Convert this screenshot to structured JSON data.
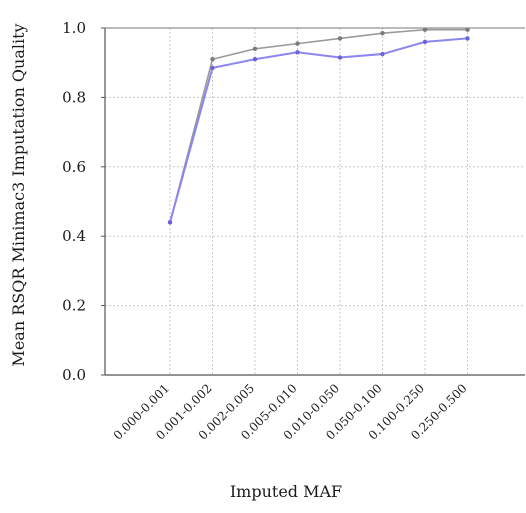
{
  "chart_data": {
    "type": "line",
    "xlabel": "Imputed MAF",
    "ylabel": "Mean RSQR Minimac3 Imputation Quality",
    "categories": [
      "0.000-0.001",
      "0.001-0.002",
      "0.002-0.005",
      "0.005-0.010",
      "0.010-0.050",
      "0.050-0.100",
      "0.100-0.250",
      "0.250-0.500"
    ],
    "ylim": [
      0.0,
      1.0
    ],
    "yticks": [
      "0.0",
      "0.2",
      "0.4",
      "0.6",
      "0.8",
      "1.0"
    ],
    "grid": true,
    "series": [
      {
        "color": "#9a9a9a",
        "values": [
          0.44,
          0.91,
          0.94,
          0.955,
          0.97,
          0.985,
          0.995,
          0.995
        ]
      },
      {
        "color": "#8c86f0",
        "values": [
          0.44,
          0.885,
          0.91,
          0.93,
          0.915,
          0.925,
          0.96,
          0.97
        ]
      }
    ]
  }
}
